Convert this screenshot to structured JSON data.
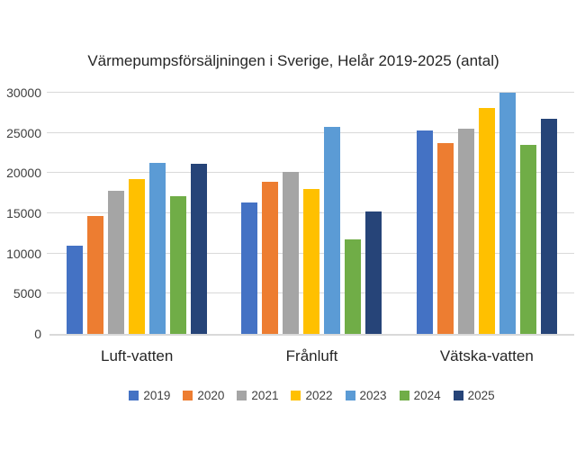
{
  "chart_data": {
    "type": "bar",
    "title": "Värmepumpsförsäljningen i Sverige, Helår 2019-2025 (antal)",
    "categories": [
      "Luft-vatten",
      "Frånluft",
      "Vätska-vatten"
    ],
    "series": [
      {
        "name": "2019",
        "color": "#4472C4",
        "values": [
          11000,
          16300,
          25300
        ]
      },
      {
        "name": "2020",
        "color": "#ED7D31",
        "values": [
          14700,
          18900,
          23700
        ]
      },
      {
        "name": "2021",
        "color": "#A5A5A5",
        "values": [
          17800,
          20100,
          25500
        ]
      },
      {
        "name": "2022",
        "color": "#FFC000",
        "values": [
          19200,
          18000,
          28100
        ]
      },
      {
        "name": "2023",
        "color": "#5B9BD5",
        "values": [
          21300,
          25800,
          30000
        ]
      },
      {
        "name": "2024",
        "color": "#70AD47",
        "values": [
          17100,
          11800,
          23500
        ]
      },
      {
        "name": "2025",
        "color": "#264478",
        "values": [
          21200,
          15200,
          26700
        ]
      }
    ],
    "yaxis": {
      "min": 0,
      "max": 30000,
      "step": 5000,
      "ticks": [
        "0",
        "5000",
        "10000",
        "15000",
        "20000",
        "25000",
        "30000"
      ]
    },
    "ylim": [
      0,
      30000
    ],
    "grid": true,
    "legend_position": "bottom",
    "gridline_color": "#D9D9D9",
    "axis_line_color": "#D9D9D9",
    "title_color": "#262626",
    "label_color": "#404040",
    "background_color": "#FFFFFF"
  }
}
